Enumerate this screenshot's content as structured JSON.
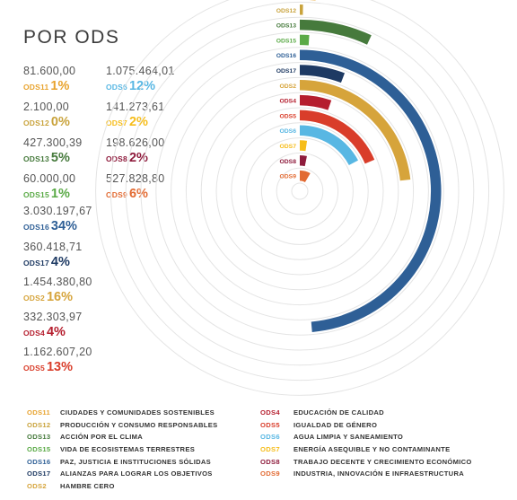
{
  "title": "POR ODS",
  "items": [
    {
      "code": "ODS11",
      "amount": "81.600,00",
      "pct": "1%",
      "value": 81600.0,
      "color": "#e8a32e",
      "label": "CIUDADES Y COMUNIDADES SOSTENIBLES"
    },
    {
      "code": "ODS12",
      "amount": "2.100,00",
      "pct": "0%",
      "value": 2100.0,
      "color": "#c9a33c",
      "label": "PRODUCCIÓN Y CONSUMO RESPONSABLES"
    },
    {
      "code": "ODS13",
      "amount": "427.300,39",
      "pct": "5%",
      "value": 427300.39,
      "color": "#467a3c",
      "label": "ACCIÓN POR EL CLIMA"
    },
    {
      "code": "ODS15",
      "amount": "60.000,00",
      "pct": "1%",
      "value": 60000.0,
      "color": "#5aaa46",
      "label": "VIDA DE ECOSISTEMAS TERRESTRES"
    },
    {
      "code": "ODS16",
      "amount": "3.030.197,67",
      "pct": "34%",
      "value": 3030197.67,
      "color": "#2e5f96",
      "label": "PAZ, JUSTICIA E INSTITUCIONES SÓLIDAS"
    },
    {
      "code": "ODS17",
      "amount": "360.418,71",
      "pct": "4%",
      "value": 360418.71,
      "color": "#1e3a63",
      "label": "ALIANZAS PARA LOGRAR LOS OBJETIVOS"
    },
    {
      "code": "ODS2",
      "amount": "1.454.380,80",
      "pct": "16%",
      "value": 1454380.8,
      "color": "#d6a43b",
      "label": "HAMBRE CERO"
    },
    {
      "code": "ODS4",
      "amount": "332.303,97",
      "pct": "4%",
      "value": 332303.97,
      "color": "#b51e2e",
      "label": "EDUCACIÓN DE CALIDAD"
    },
    {
      "code": "ODS5",
      "amount": "1.162.607,20",
      "pct": "13%",
      "value": 1162607.2,
      "color": "#d93d2a",
      "label": "IGUALDAD DE GÉNERO"
    },
    {
      "code": "ODS6",
      "amount": "1.075.464,01",
      "pct": "12%",
      "value": 1075464.01,
      "color": "#58b7e3",
      "label": "AGUA LIMPIA Y SANEAMIENTO"
    },
    {
      "code": "ODS7",
      "amount": "141.273,61",
      "pct": "2%",
      "value": 141273.61,
      "color": "#f6bd1b",
      "label": "ENERGÍA ASEQUIBLE Y NO CONTAMINANTE"
    },
    {
      "code": "ODS8",
      "amount": "198.626,00",
      "pct": "2%",
      "value": 198626.0,
      "color": "#8e1b3c",
      "label": "TRABAJO DECENTE Y CRECIMIENTO ECONÓMICO"
    },
    {
      "code": "ODS9",
      "amount": "527.828,80",
      "pct": "6%",
      "value": 527828.8,
      "color": "#e26a32",
      "label": "INDUSTRIA, INNOVACIÓN E INFRAESTRUCTURA"
    }
  ],
  "chart_data": {
    "type": "radial bar",
    "categories": [
      "ODS11",
      "ODS12",
      "ODS13",
      "ODS15",
      "ODS16",
      "ODS17",
      "ODS2",
      "ODS4",
      "ODS5",
      "ODS6",
      "ODS7",
      "ODS8",
      "ODS9"
    ],
    "values": [
      81600.0,
      2100.0,
      427300.39,
      60000.0,
      3030197.67,
      360418.71,
      1454380.8,
      332303.97,
      1162607.2,
      1075464.01,
      141273.61,
      198626.0,
      527828.8
    ],
    "percentages": [
      "1%",
      "0%",
      "5%",
      "1%",
      "34%",
      "4%",
      "16%",
      "4%",
      "13%",
      "12%",
      "2%",
      "2%",
      "6%"
    ],
    "title": "POR ODS",
    "grid": true
  }
}
